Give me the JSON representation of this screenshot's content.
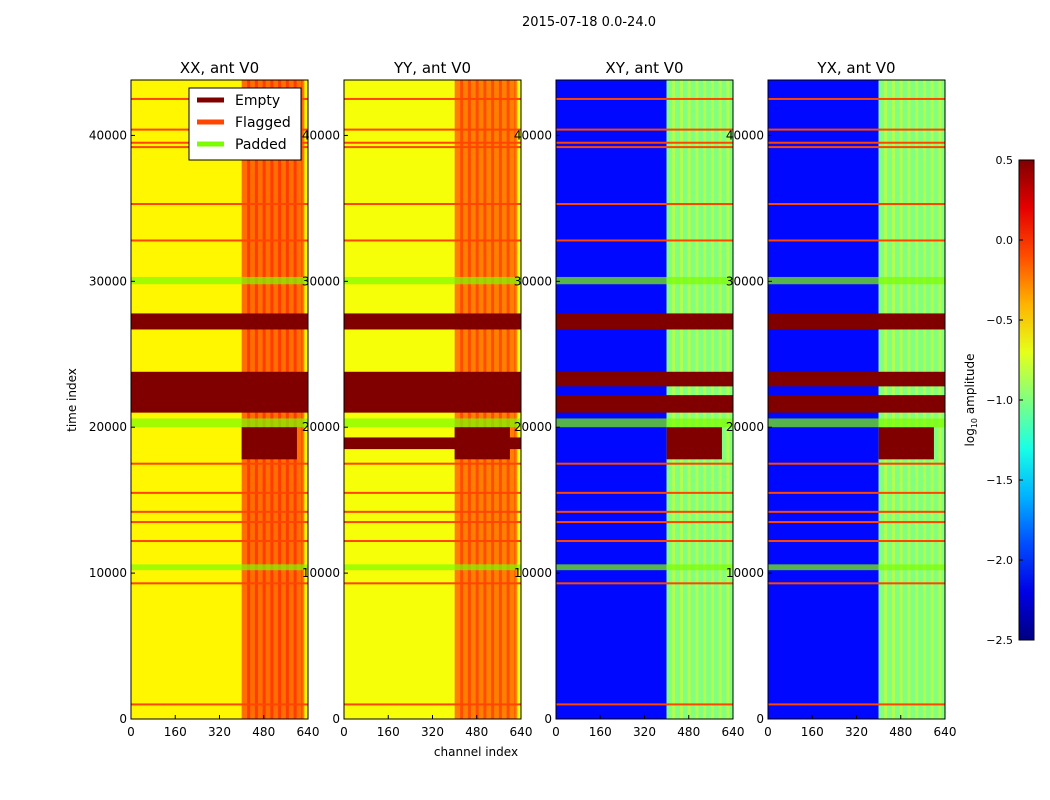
{
  "chart_data": {
    "type": "heatmap",
    "title": "2015-07-18 0.0-24.0",
    "xlabel": "channel index",
    "ylabel": "time index",
    "xlim": [
      0,
      640
    ],
    "ylim": [
      0,
      43800
    ],
    "xticks": [
      0,
      160,
      320,
      480,
      640
    ],
    "yticks": [
      0,
      10000,
      20000,
      30000,
      40000
    ],
    "colorbar": {
      "label": "log10 amplitude",
      "label_main": "log",
      "label_sub": "10",
      "label_rest": " amplitude",
      "range": [
        -2.5,
        0.5
      ],
      "ticks": [
        "0.5",
        "0.0",
        "−0.5",
        "−1.0",
        "−1.5",
        "−2.0",
        "−2.5"
      ],
      "tick_values": [
        0.5,
        0.0,
        -0.5,
        -1.0,
        -1.5,
        -2.0,
        -2.5
      ]
    },
    "legend": {
      "placement": "upper-left of first panel",
      "entries": [
        {
          "label": "Empty",
          "color": "#800000"
        },
        {
          "label": "Flagged",
          "color": "#ff4500"
        },
        {
          "label": "Padded",
          "color": "#7cfc00"
        }
      ]
    },
    "flagged_times": [
      1000,
      9300,
      12200,
      13500,
      14200,
      15500,
      17500,
      32800,
      35300,
      39200,
      39500,
      40400,
      42500
    ],
    "padded_ranges": [
      [
        10200,
        10600
      ],
      [
        20000,
        20600
      ],
      [
        29800,
        30300
      ]
    ],
    "panels": [
      {
        "title": "XX, ant V0",
        "columns": [
          [
            0,
            400,
            -0.6
          ],
          [
            400,
            620,
            -0.2
          ],
          [
            620,
            640,
            -0.6
          ]
        ],
        "empty_ranges": [
          [
            21000,
            23800,
            0,
            640
          ],
          [
            26700,
            27800,
            0,
            640
          ],
          [
            17800,
            20000,
            400,
            600
          ]
        ]
      },
      {
        "title": "YY, ant V0",
        "columns": [
          [
            0,
            400,
            -0.65
          ],
          [
            400,
            620,
            -0.25
          ],
          [
            620,
            640,
            -0.65
          ]
        ],
        "empty_ranges": [
          [
            18500,
            19300,
            0,
            640
          ],
          [
            21000,
            23800,
            0,
            640
          ],
          [
            26700,
            27800,
            0,
            640
          ],
          [
            17800,
            20000,
            400,
            600
          ]
        ]
      },
      {
        "title": "XY, ant V0",
        "columns": [
          [
            0,
            400,
            -2.1
          ],
          [
            400,
            640,
            -1.0
          ]
        ],
        "empty_ranges": [
          [
            21000,
            22200,
            0,
            640
          ],
          [
            22800,
            23800,
            0,
            640
          ],
          [
            26700,
            27800,
            0,
            640
          ],
          [
            17800,
            20000,
            400,
            600
          ]
        ]
      },
      {
        "title": "YX, ant V0",
        "columns": [
          [
            0,
            400,
            -2.1
          ],
          [
            400,
            640,
            -1.0
          ]
        ],
        "empty_ranges": [
          [
            21000,
            22200,
            0,
            640
          ],
          [
            22800,
            23800,
            0,
            640
          ],
          [
            26700,
            27800,
            0,
            640
          ],
          [
            17800,
            20000,
            400,
            600
          ]
        ]
      }
    ]
  }
}
